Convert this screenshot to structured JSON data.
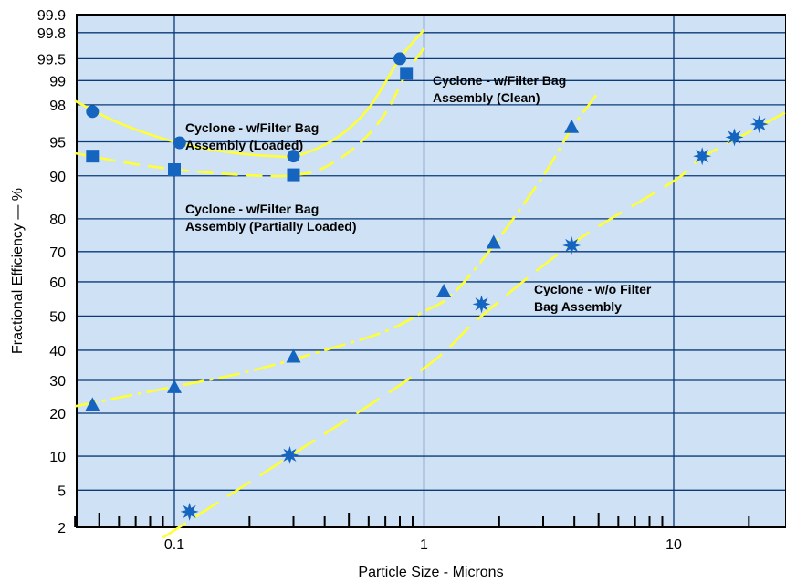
{
  "chart_data": {
    "type": "scatter",
    "title": "",
    "xlabel": "Particle Size - Microns",
    "ylabel": "Fractional Efficiency — %",
    "x_scale": "log",
    "y_scale": "probability",
    "xlim": [
      0.04,
      30
    ],
    "ylim": [
      2,
      99.9
    ],
    "x_ticks": [
      0.1,
      1,
      10
    ],
    "x_tick_labels": [
      "0.1",
      "1",
      "10"
    ],
    "y_ticks": [
      2,
      5,
      10,
      20,
      30,
      40,
      50,
      60,
      70,
      80,
      90,
      95,
      98,
      99,
      99.5,
      99.8,
      99.9
    ],
    "y_tick_labels": [
      "2",
      "5",
      "10",
      "20",
      "30",
      "40",
      "50",
      "60",
      "70",
      "80",
      "90",
      "95",
      "98",
      "99",
      "99.5",
      "99.8",
      "99.9"
    ],
    "grid": true,
    "colors": {
      "plot_background": "#cfe2f5",
      "grid": "#0a3a78",
      "marker": "#1565c0",
      "curve": "#ffff33"
    },
    "series": [
      {
        "name": "Cyclone - w/Filter Bag Assembly (Loaded)",
        "marker": "circle",
        "points": [
          [
            0.047,
            97.6
          ],
          [
            0.105,
            94.9
          ],
          [
            0.3,
            93.2
          ],
          [
            0.8,
            99.5
          ]
        ]
      },
      {
        "name": "Cyclone - w/Filter Bag Assembly (Partially Loaded)",
        "marker": "square",
        "points": [
          [
            0.047,
            93.2
          ],
          [
            0.1,
            91.1
          ],
          [
            0.3,
            90.2
          ],
          [
            0.85,
            99.2
          ]
        ]
      },
      {
        "name": "Cyclone - w/Filter Bag Assembly (Clean)",
        "marker": "triangle",
        "points": [
          [
            0.047,
            22.5
          ],
          [
            0.1,
            28.0
          ],
          [
            0.3,
            38.0
          ],
          [
            1.2,
            57.0
          ],
          [
            1.9,
            73.0
          ],
          [
            3.9,
            96.5
          ]
        ]
      },
      {
        "name": "Cyclone - w/o Filter Bag Assembly",
        "marker": "star",
        "points": [
          [
            0.115,
            3.0
          ],
          [
            0.29,
            10.2
          ],
          [
            1.7,
            53.0
          ],
          [
            3.9,
            72.0
          ],
          [
            13.0,
            93.2
          ],
          [
            17.5,
            95.5
          ],
          [
            22.0,
            96.7
          ]
        ]
      }
    ],
    "curves": [
      {
        "style": "solid",
        "points": [
          [
            0.04,
            98.2
          ],
          [
            0.06,
            96.8
          ],
          [
            0.1,
            95.0
          ],
          [
            0.16,
            93.8
          ],
          [
            0.25,
            93.2
          ],
          [
            0.32,
            93.4
          ],
          [
            0.45,
            95.5
          ],
          [
            0.6,
            97.8
          ],
          [
            0.8,
            99.5
          ],
          [
            1.0,
            99.82
          ]
        ]
      },
      {
        "style": "dashed",
        "points": [
          [
            0.04,
            93.6
          ],
          [
            0.07,
            92.0
          ],
          [
            0.12,
            90.8
          ],
          [
            0.2,
            90.1
          ],
          [
            0.3,
            90.1
          ],
          [
            0.4,
            91.5
          ],
          [
            0.55,
            94.8
          ],
          [
            0.7,
            97.5
          ],
          [
            0.85,
            99.2
          ],
          [
            1.0,
            99.65
          ]
        ]
      },
      {
        "style": "dashdot",
        "points": [
          [
            0.04,
            22.0
          ],
          [
            0.1,
            28.0
          ],
          [
            0.2,
            33.0
          ],
          [
            0.4,
            40.0
          ],
          [
            0.7,
            46.0
          ],
          [
            1.0,
            51.0
          ],
          [
            1.3,
            56.0
          ],
          [
            1.9,
            72.0
          ],
          [
            3.0,
            90.0
          ],
          [
            3.9,
            96.3
          ],
          [
            5.0,
            98.6
          ]
        ]
      },
      {
        "style": "longdash",
        "points": [
          [
            0.09,
            1.5
          ],
          [
            0.29,
            10.0
          ],
          [
            1.0,
            34.0
          ],
          [
            1.7,
            50.0
          ],
          [
            4.0,
            73.0
          ],
          [
            10.0,
            89.0
          ],
          [
            13.0,
            93.0
          ],
          [
            20.0,
            96.0
          ],
          [
            30.0,
            97.8
          ]
        ]
      }
    ],
    "annotations": [
      {
        "lines": [
          "Cyclone - w/Filter Bag",
          "Assembly (Loaded)"
        ]
      },
      {
        "lines": [
          "Cyclone - w/Filter Bag",
          "Assembly (Partially Loaded)"
        ]
      },
      {
        "lines": [
          "Cyclone - w/Filter Bag",
          "Assembly (Clean)"
        ]
      },
      {
        "lines": [
          "Cyclone - w/o Filter",
          "Bag Assembly"
        ]
      }
    ]
  }
}
